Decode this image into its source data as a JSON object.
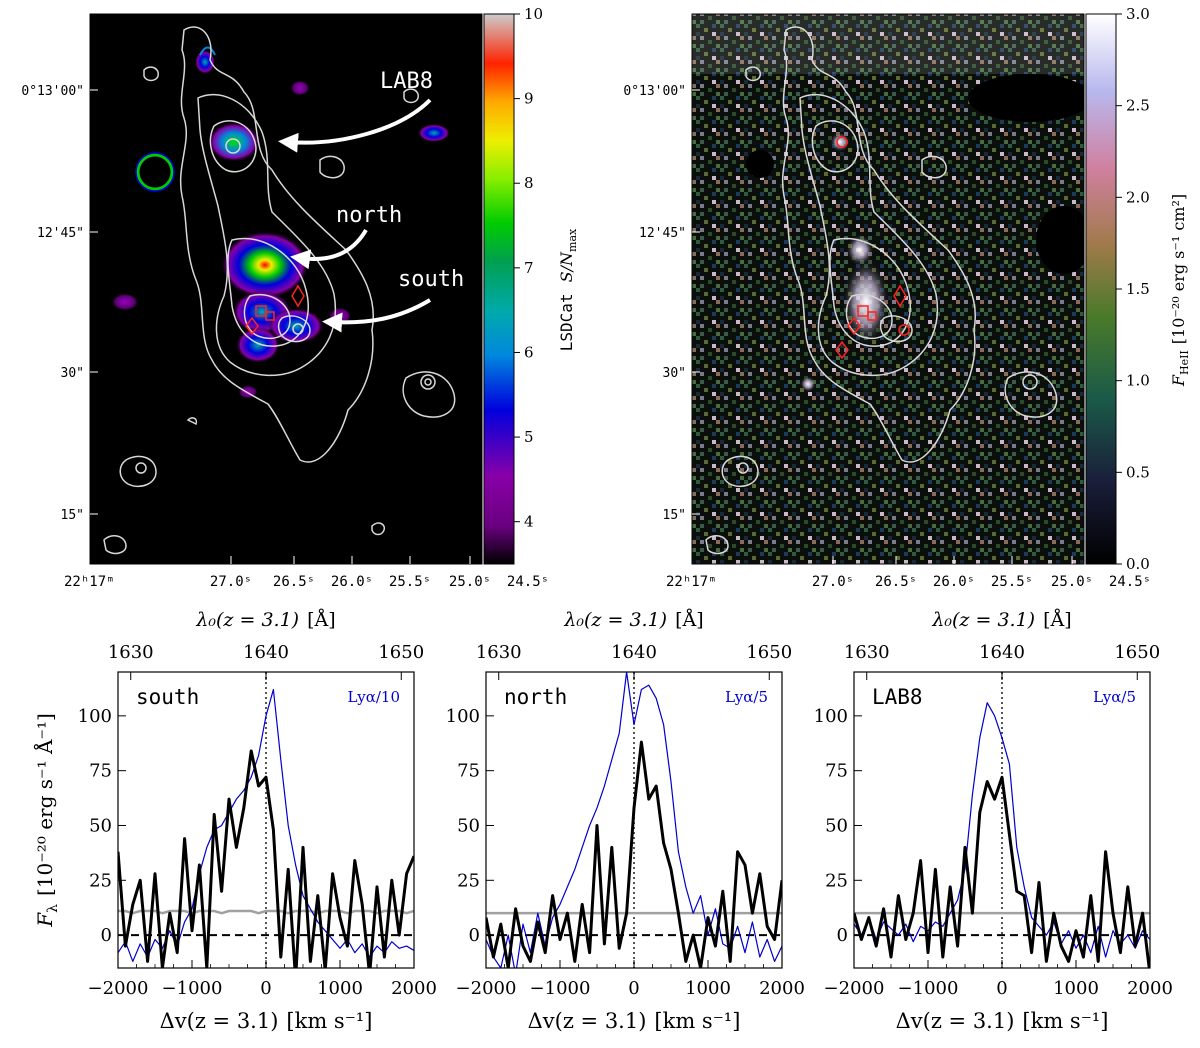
{
  "maps": [
    {
      "id": "left",
      "colorbar": {
        "label": "LSDCat S/N_max",
        "label_prefix": "LSDCat",
        "label_math": "S/N",
        "label_sub": "max",
        "ticks": [
          "4",
          "5",
          "6",
          "7",
          "8",
          "9",
          "10"
        ],
        "tick_values": [
          4,
          5,
          6,
          7,
          8,
          9,
          10
        ],
        "range": [
          3.5,
          10
        ],
        "colormap": "nipy_spectral"
      },
      "annotations": [
        {
          "text": "LAB8"
        },
        {
          "text": "north"
        },
        {
          "text": "south"
        }
      ]
    },
    {
      "id": "right",
      "colorbar": {
        "label": "F_HeII [10^-20 erg s^-1 cm^2]",
        "label_math": "F",
        "label_sub": "HeII",
        "label_unit": "[10⁻²⁰ erg s⁻¹ cm²]",
        "ticks": [
          "0.0",
          "0.5",
          "1.0",
          "1.5",
          "2.0",
          "2.5",
          "3.0"
        ],
        "tick_values": [
          0,
          0.5,
          1,
          1.5,
          2,
          2.5,
          3
        ],
        "range": [
          0,
          3
        ],
        "colormap": "cubehelix"
      }
    }
  ],
  "map_axes": {
    "dec_ticks": [
      "0°13'00\"",
      "12'45\"",
      "30\"",
      "15\""
    ],
    "ra_ticks": [
      "22ʰ17ᵐ",
      "27.0ˢ",
      "26.5ˢ",
      "26.0ˢ",
      "25.5ˢ",
      "25.0ˢ",
      "24.5ˢ"
    ]
  },
  "chart_data": [
    {
      "type": "line",
      "label": "south",
      "lya_label": "Lyα/10",
      "x": [
        -2000,
        -1900,
        -1800,
        -1700,
        -1600,
        -1500,
        -1400,
        -1300,
        -1200,
        -1100,
        -1000,
        -900,
        -800,
        -700,
        -600,
        -500,
        -400,
        -300,
        -200,
        -100,
        0,
        100,
        200,
        300,
        400,
        500,
        600,
        700,
        800,
        900,
        1000,
        1100,
        1200,
        1300,
        1400,
        1500,
        1600,
        1700,
        1800,
        1900,
        2000
      ],
      "series": [
        {
          "name": "He II",
          "color": "#000000",
          "values": [
            38,
            -5,
            14,
            25,
            -12,
            28,
            -15,
            10,
            -8,
            44,
            2,
            32,
            -15,
            55,
            20,
            62,
            40,
            58,
            84,
            68,
            72,
            48,
            -10,
            30,
            -20,
            40,
            -12,
            18,
            -16,
            28,
            8,
            -5,
            34,
            14,
            -18,
            22,
            -10,
            25,
            0,
            28,
            36
          ]
        },
        {
          "name": "Lyα",
          "color": "#0000cc",
          "values": [
            -8,
            -3,
            -12,
            -4,
            -10,
            -2,
            -6,
            2,
            -5,
            6,
            12,
            28,
            40,
            48,
            50,
            56,
            62,
            66,
            72,
            82,
            100,
            112,
            80,
            50,
            32,
            18,
            12,
            6,
            2,
            -2,
            -6,
            -2,
            -8,
            -4,
            -10,
            -5,
            -8,
            -3,
            -6,
            -5,
            -7
          ]
        },
        {
          "name": "noise",
          "color": "#a0a0a0",
          "values": [
            11,
            11,
            10,
            11,
            11,
            11,
            10,
            11,
            11,
            11,
            10,
            11,
            11,
            11,
            10,
            11,
            11,
            11,
            11,
            10,
            11,
            11,
            11,
            10,
            11,
            11,
            11,
            10,
            11,
            11,
            11,
            10,
            11,
            11,
            11,
            10,
            11,
            11,
            11,
            10,
            11
          ]
        }
      ],
      "xlim": [
        -2000,
        2000
      ],
      "ylim": [
        -15,
        120
      ],
      "top_axis_ticks": [
        "1630",
        "1640",
        "1650"
      ]
    },
    {
      "type": "line",
      "label": "north",
      "lya_label": "Lyα/5",
      "x": [
        -2000,
        -1900,
        -1800,
        -1700,
        -1600,
        -1500,
        -1400,
        -1300,
        -1200,
        -1100,
        -1000,
        -900,
        -800,
        -700,
        -600,
        -500,
        -400,
        -300,
        -200,
        -100,
        0,
        100,
        200,
        300,
        400,
        500,
        600,
        700,
        800,
        900,
        1000,
        1100,
        1200,
        1300,
        1400,
        1500,
        1600,
        1700,
        1800,
        1900,
        2000
      ],
      "series": [
        {
          "name": "He II",
          "color": "#000000",
          "values": [
            8,
            -10,
            5,
            -15,
            12,
            -5,
            -12,
            6,
            -8,
            18,
            -2,
            10,
            -12,
            14,
            -8,
            50,
            -4,
            40,
            -6,
            10,
            58,
            88,
            62,
            68,
            42,
            30,
            10,
            -12,
            0,
            -15,
            8,
            -5,
            20,
            -12,
            38,
            32,
            10,
            28,
            4,
            -2,
            25
          ]
        },
        {
          "name": "Lyα",
          "color": "#0000cc",
          "values": [
            -2,
            -10,
            -15,
            0,
            -18,
            5,
            -8,
            10,
            -5,
            8,
            14,
            22,
            30,
            40,
            50,
            58,
            68,
            80,
            92,
            120,
            96,
            112,
            114,
            108,
            96,
            70,
            38,
            22,
            10,
            18,
            0,
            12,
            -4,
            -6,
            4,
            -8,
            6,
            -10,
            -2,
            -12,
            -5
          ]
        },
        {
          "name": "noise",
          "color": "#a0a0a0",
          "values": [
            10,
            10,
            10,
            10,
            10,
            10,
            10,
            10,
            10,
            10,
            10,
            10,
            10,
            10,
            10,
            10,
            10,
            10,
            10,
            10,
            10,
            10,
            10,
            10,
            10,
            10,
            10,
            10,
            10,
            10,
            10,
            10,
            10,
            10,
            10,
            10,
            10,
            10,
            10,
            10,
            10
          ]
        }
      ],
      "xlim": [
        -2000,
        2000
      ],
      "ylim": [
        -15,
        120
      ],
      "top_axis_ticks": [
        "1630",
        "1640",
        "1650"
      ]
    },
    {
      "type": "line",
      "label": "LAB8",
      "lya_label": "Lyα/5",
      "x": [
        -2000,
        -1900,
        -1800,
        -1700,
        -1600,
        -1500,
        -1400,
        -1300,
        -1200,
        -1100,
        -1000,
        -900,
        -800,
        -700,
        -600,
        -500,
        -400,
        -300,
        -200,
        -100,
        0,
        100,
        200,
        300,
        400,
        500,
        600,
        700,
        800,
        900,
        1000,
        1100,
        1200,
        1300,
        1400,
        1500,
        1600,
        1700,
        1800,
        1900,
        2000
      ],
      "series": [
        {
          "name": "He II",
          "color": "#000000",
          "values": [
            10,
            -2,
            8,
            -5,
            12,
            -10,
            18,
            -2,
            10,
            34,
            -8,
            30,
            -10,
            22,
            -5,
            40,
            10,
            56,
            70,
            62,
            72,
            46,
            20,
            18,
            -8,
            24,
            -12,
            10,
            -5,
            -12,
            2,
            -10,
            18,
            -12,
            38,
            10,
            -8,
            22,
            -5,
            10,
            -18
          ]
        },
        {
          "name": "Lyα",
          "color": "#0000cc",
          "values": [
            5,
            0,
            8,
            -2,
            6,
            3,
            0,
            5,
            -3,
            4,
            2,
            6,
            4,
            10,
            16,
            30,
            64,
            90,
            106,
            100,
            90,
            78,
            40,
            22,
            8,
            4,
            0,
            6,
            -4,
            2,
            -6,
            0,
            -8,
            4,
            -10,
            2,
            -4,
            0,
            -6,
            2,
            -2
          ]
        },
        {
          "name": "noise",
          "color": "#a0a0a0",
          "values": [
            10,
            10,
            10,
            10,
            10,
            10,
            10,
            10,
            10,
            10,
            10,
            10,
            10,
            10,
            10,
            10,
            10,
            10,
            10,
            10,
            10,
            10,
            10,
            10,
            10,
            10,
            10,
            10,
            10,
            10,
            10,
            10,
            10,
            10,
            10,
            10,
            10,
            10,
            10,
            10,
            10
          ]
        }
      ],
      "xlim": [
        -2000,
        2000
      ],
      "ylim": [
        -15,
        120
      ],
      "top_axis_ticks": [
        "1630",
        "1640",
        "1650"
      ]
    }
  ],
  "spectra_axes": {
    "ylabel": "F_λ [10^-20 erg s^-1 Å^-1]",
    "ylabel_math": "F",
    "ylabel_sub": "λ",
    "ylabel_unit": "[10⁻²⁰ erg s⁻¹ Å⁻¹]",
    "xlabel": "Δv(z=3.1) [km s^-1]",
    "xlabel_main": "Δv(z = 3.1)",
    "xlabel_unit": "[km s⁻¹]",
    "toplabel": "λ₀(z=3.1) [Å]",
    "toplabel_main": "λ₀(z = 3.1)",
    "toplabel_unit": "[Å]",
    "xticks": [
      "−2000",
      "−1000",
      "0",
      "1000",
      "2000"
    ],
    "xtick_values": [
      -2000,
      -1000,
      0,
      1000,
      2000
    ],
    "yticks": [
      "0",
      "25",
      "50",
      "75",
      "100"
    ],
    "ytick_values": [
      0,
      25,
      50,
      75,
      100
    ],
    "top_tick_values": [
      1630,
      1640,
      1650
    ]
  }
}
